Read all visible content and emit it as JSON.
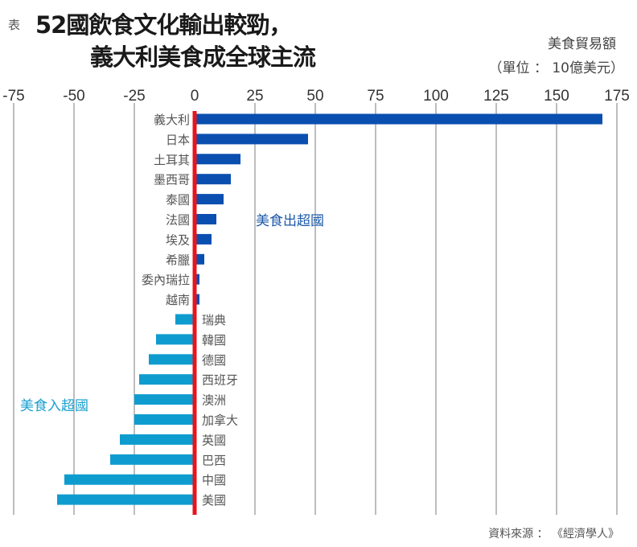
{
  "header": {
    "prefix": "表",
    "title_line1": "52國飲食文化輸出較勁，",
    "title_line2": "義大利美食成全球主流",
    "unit_line1": "美食貿易額",
    "unit_line2": "（單位 ： 10億美元）"
  },
  "source": "資料來源 ： 《經濟學人》",
  "colors": {
    "export": "#0a4fb0",
    "import": "#0e9ccf",
    "zero_line": "#e8141b",
    "grid": "#9a9a9a",
    "export_label": "#1c5aa8",
    "import_label": "#1aa0cf"
  },
  "chart_data": {
    "type": "bar",
    "orientation": "horizontal",
    "title": "52國飲食文化輸出較勁，義大利美食成全球主流",
    "xlabel": "美食貿易額（單位：10億美元）",
    "ylabel": "",
    "xlim": [
      -75,
      175
    ],
    "xticks": [
      -75,
      -50,
      -25,
      0,
      25,
      50,
      75,
      100,
      125,
      150,
      175
    ],
    "xtick_labels": [
      "-75",
      "-50",
      "-25",
      "0",
      "25",
      "50",
      "75",
      "100",
      "125",
      "150",
      "175"
    ],
    "grid": true,
    "categories": [
      "義大利",
      "日本",
      "土耳其",
      "墨西哥",
      "泰國",
      "法國",
      "埃及",
      "希臘",
      "委內瑞拉",
      "越南",
      "瑞典",
      "韓國",
      "德國",
      "西班牙",
      "澳洲",
      "加拿大",
      "英國",
      "巴西",
      "中國",
      "美國"
    ],
    "values": [
      169,
      47,
      19,
      15,
      12,
      9,
      7,
      4,
      2,
      2,
      -8,
      -16,
      -19,
      -23,
      -25,
      -25,
      -31,
      -35,
      -54,
      -57
    ],
    "series": [
      {
        "name": "美食出超國",
        "categories": [
          "義大利",
          "日本",
          "土耳其",
          "墨西哥",
          "泰國",
          "法國",
          "埃及",
          "希臘",
          "委內瑞拉",
          "越南"
        ],
        "values": [
          169,
          47,
          19,
          15,
          12,
          9,
          7,
          4,
          2,
          2
        ]
      },
      {
        "name": "美食入超國",
        "categories": [
          "瑞典",
          "韓國",
          "德國",
          "西班牙",
          "澳洲",
          "加拿大",
          "英國",
          "巴西",
          "中國",
          "美國"
        ],
        "values": [
          -8,
          -16,
          -19,
          -23,
          -25,
          -25,
          -31,
          -35,
          -54,
          -57
        ]
      }
    ],
    "annotations": [
      "美食出超國",
      "美食入超國"
    ]
  }
}
